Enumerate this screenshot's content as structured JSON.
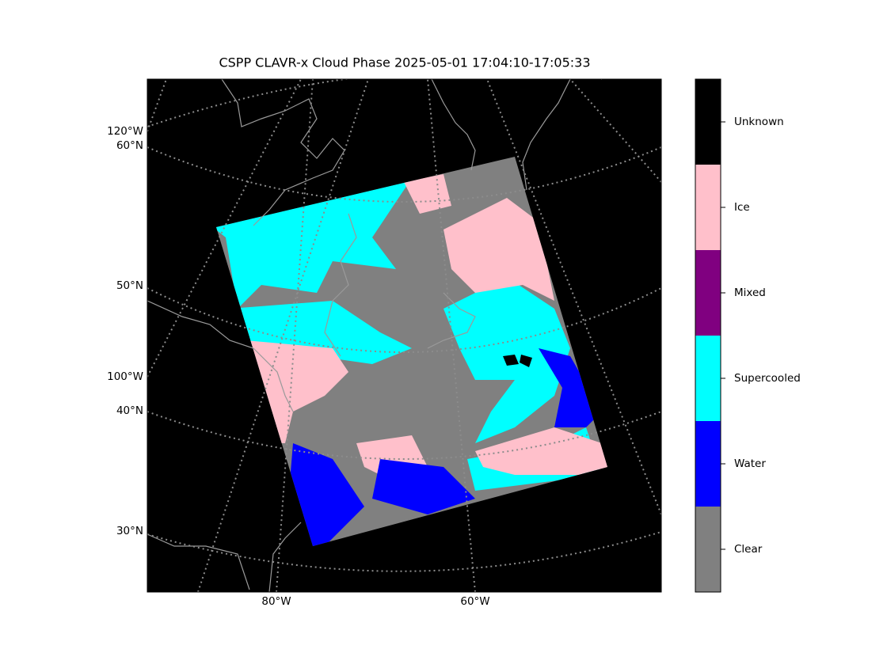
{
  "title": "CSPP CLAVR-x Cloud Phase 2025-05-01 17:04:10-17:05:33",
  "map": {
    "left_labels": [
      "120°W",
      "60°N",
      "50°N",
      "100°W",
      "40°N",
      "30°N"
    ],
    "bottom_labels": [
      "80°W",
      "60°W"
    ],
    "background": "#000000"
  },
  "colorbar": {
    "classes": [
      {
        "label": "Unknown",
        "color": "#000000"
      },
      {
        "label": "Ice",
        "color": "#ffc0cb"
      },
      {
        "label": "Mixed",
        "color": "#800080"
      },
      {
        "label": "Supercooled",
        "color": "#00ffff"
      },
      {
        "label": "Water",
        "color": "#0000ff"
      },
      {
        "label": "Clear",
        "color": "#808080"
      }
    ]
  }
}
